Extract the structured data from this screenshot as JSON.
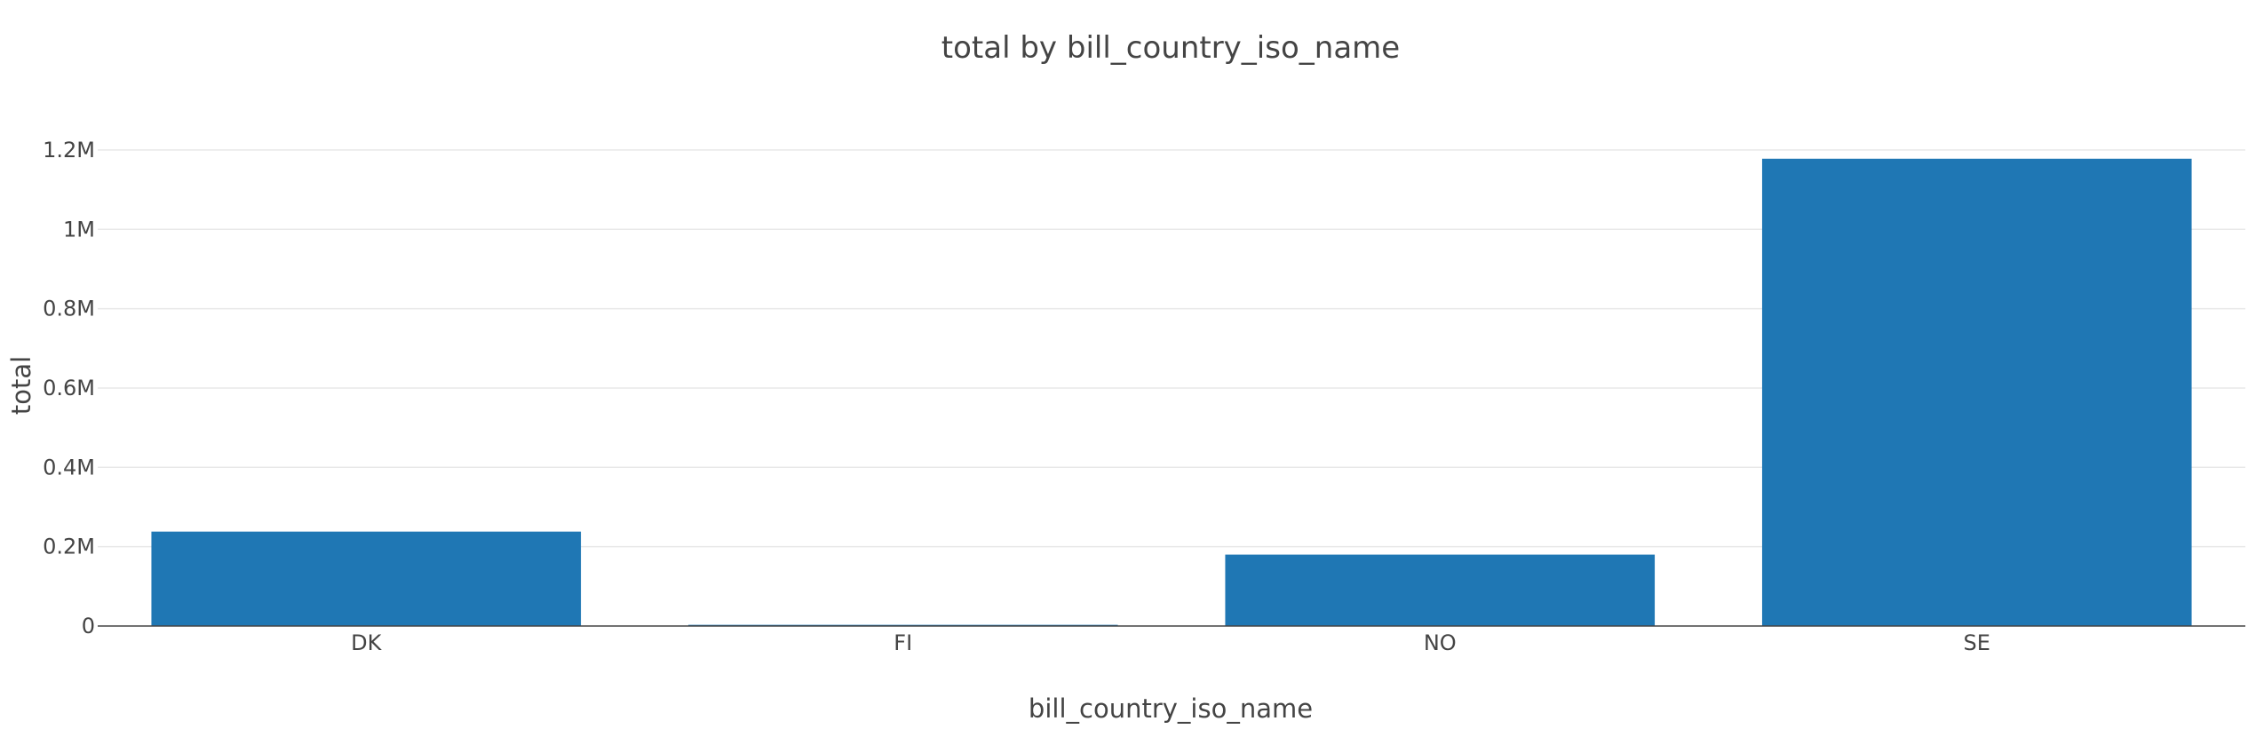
{
  "chart_data": {
    "type": "bar",
    "title": "total by bill_country_iso_name",
    "xlabel": "bill_country_iso_name",
    "ylabel": "total",
    "categories": [
      "DK",
      "FI",
      "NO",
      "SE"
    ],
    "values": [
      238000,
      3000,
      180000,
      1178000
    ],
    "ylim": [
      0,
      1220000
    ],
    "yticks": [
      {
        "value": 0,
        "label": "0"
      },
      {
        "value": 200000,
        "label": "0.2M"
      },
      {
        "value": 400000,
        "label": "0.4M"
      },
      {
        "value": 600000,
        "label": "0.6M"
      },
      {
        "value": 800000,
        "label": "0.8M"
      },
      {
        "value": 1000000,
        "label": "1M"
      },
      {
        "value": 1200000,
        "label": "1.2M"
      }
    ],
    "grid": true,
    "legend": "none",
    "colors": {
      "bar": "#1f77b4",
      "grid": "#e8e8e8",
      "axis": "#444444",
      "text": "#444444"
    }
  }
}
